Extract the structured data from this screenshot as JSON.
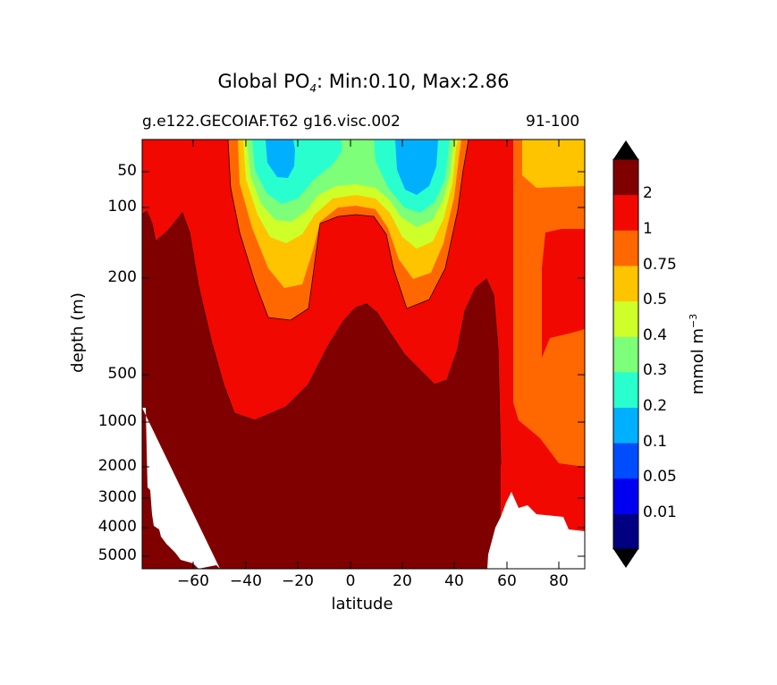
{
  "chart_data": {
    "type": "heatmap",
    "title_prefix": "Global PO",
    "title_sub": "4",
    "title_suffix": ": Min:0.10, Max:2.86",
    "subtitle_left": "g.e122.GECOIAF.T62 g16.visc.002",
    "subtitle_right": "91-100",
    "xlabel": "latitude",
    "ylabel": "depth (m)",
    "xlim": [
      -79,
      90
    ],
    "ylim": [
      5500,
      10
    ],
    "x_ticks": [
      "−60",
      "−40",
      "−20",
      "0",
      "20",
      "40",
      "60",
      "80"
    ],
    "y_ticks": [
      "50",
      "100",
      "200",
      "500",
      "1000",
      "2000",
      "3000",
      "4000",
      "5000"
    ],
    "colorbar": {
      "label_main": "mmol m",
      "label_sup": "−3",
      "extend": "both",
      "tick_labels": [
        "0.01",
        "0.05",
        "0.1",
        "0.2",
        "0.3",
        "0.4",
        "0.5",
        "0.75",
        "1",
        "2"
      ],
      "colors": [
        "#000080",
        "#0000f1",
        "#004cff",
        "#00b0ff",
        "#29ffce",
        "#7dff7a",
        "#ceff29",
        "#ffc400",
        "#ff6800",
        "#f10800",
        "#800000"
      ],
      "under_color": "#000000",
      "over_color": "#000000"
    },
    "colors": {
      "land": "#ffffff",
      "c_2plus": "#800000",
      "c_1_2": "#f10800",
      "c_075_1": "#ff6800",
      "c_05_075": "#ffc400",
      "c_04_05": "#ceff29",
      "c_03_04": "#7dff7a",
      "c_02_03": "#29ffce",
      "c_01_02": "#00b0ff"
    }
  }
}
